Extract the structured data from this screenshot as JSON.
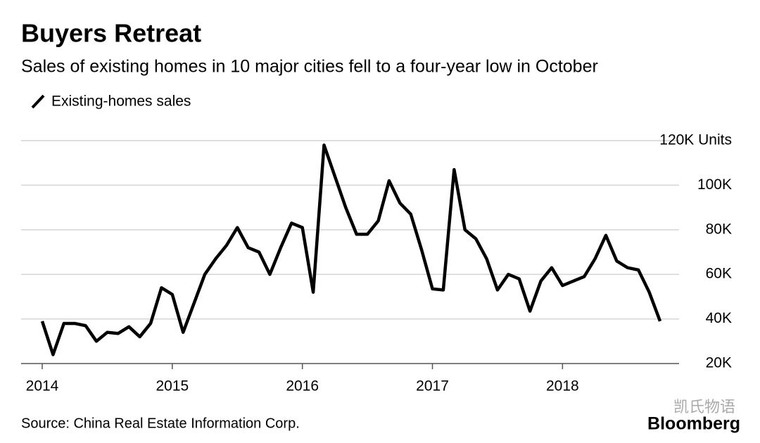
{
  "chart_data": {
    "type": "line",
    "title": "Buyers Retreat",
    "subtitle": "Sales of existing homes in 10 major cities fell to a four-year low in October",
    "source": "Source: China Real Estate Information Corp.",
    "brand": "Bloomberg",
    "watermark": "凯氏物语",
    "categories": [
      "2014",
      null,
      null,
      null,
      null,
      null,
      null,
      null,
      null,
      null,
      null,
      null,
      "2015",
      null,
      null,
      null,
      null,
      null,
      null,
      null,
      null,
      null,
      null,
      null,
      "2016",
      null,
      null,
      null,
      null,
      null,
      null,
      null,
      null,
      null,
      null,
      null,
      "2017",
      null,
      null,
      null,
      null,
      null,
      null,
      null,
      null,
      null,
      null,
      null,
      "2018",
      null,
      null,
      null,
      null,
      null,
      null,
      null,
      null,
      null
    ],
    "series": [
      {
        "name": "Existing-homes sales",
        "color": "#000000",
        "values": [
          39,
          24,
          38,
          38,
          37,
          30,
          34,
          33.5,
          36.5,
          32,
          38,
          54,
          51,
          34,
          47,
          60,
          67,
          73,
          81,
          72,
          70,
          60,
          72,
          83,
          81,
          52,
          118,
          104,
          90,
          78,
          78,
          84,
          102,
          92,
          87,
          71,
          53.5,
          53,
          107,
          80,
          76,
          67,
          53,
          60,
          58,
          43.5,
          57,
          63,
          55,
          57,
          59,
          67,
          77.5,
          66,
          63,
          62,
          52,
          39
        ]
      }
    ],
    "ylim": [
      20,
      120
    ],
    "yticks": [
      {
        "value": 20,
        "label": "20K"
      },
      {
        "value": 40,
        "label": "40K"
      },
      {
        "value": 60,
        "label": "60K"
      },
      {
        "value": 80,
        "label": "80K"
      },
      {
        "value": 100,
        "label": "100K"
      },
      {
        "value": 120,
        "label": "120K Units"
      }
    ],
    "grid": true
  }
}
